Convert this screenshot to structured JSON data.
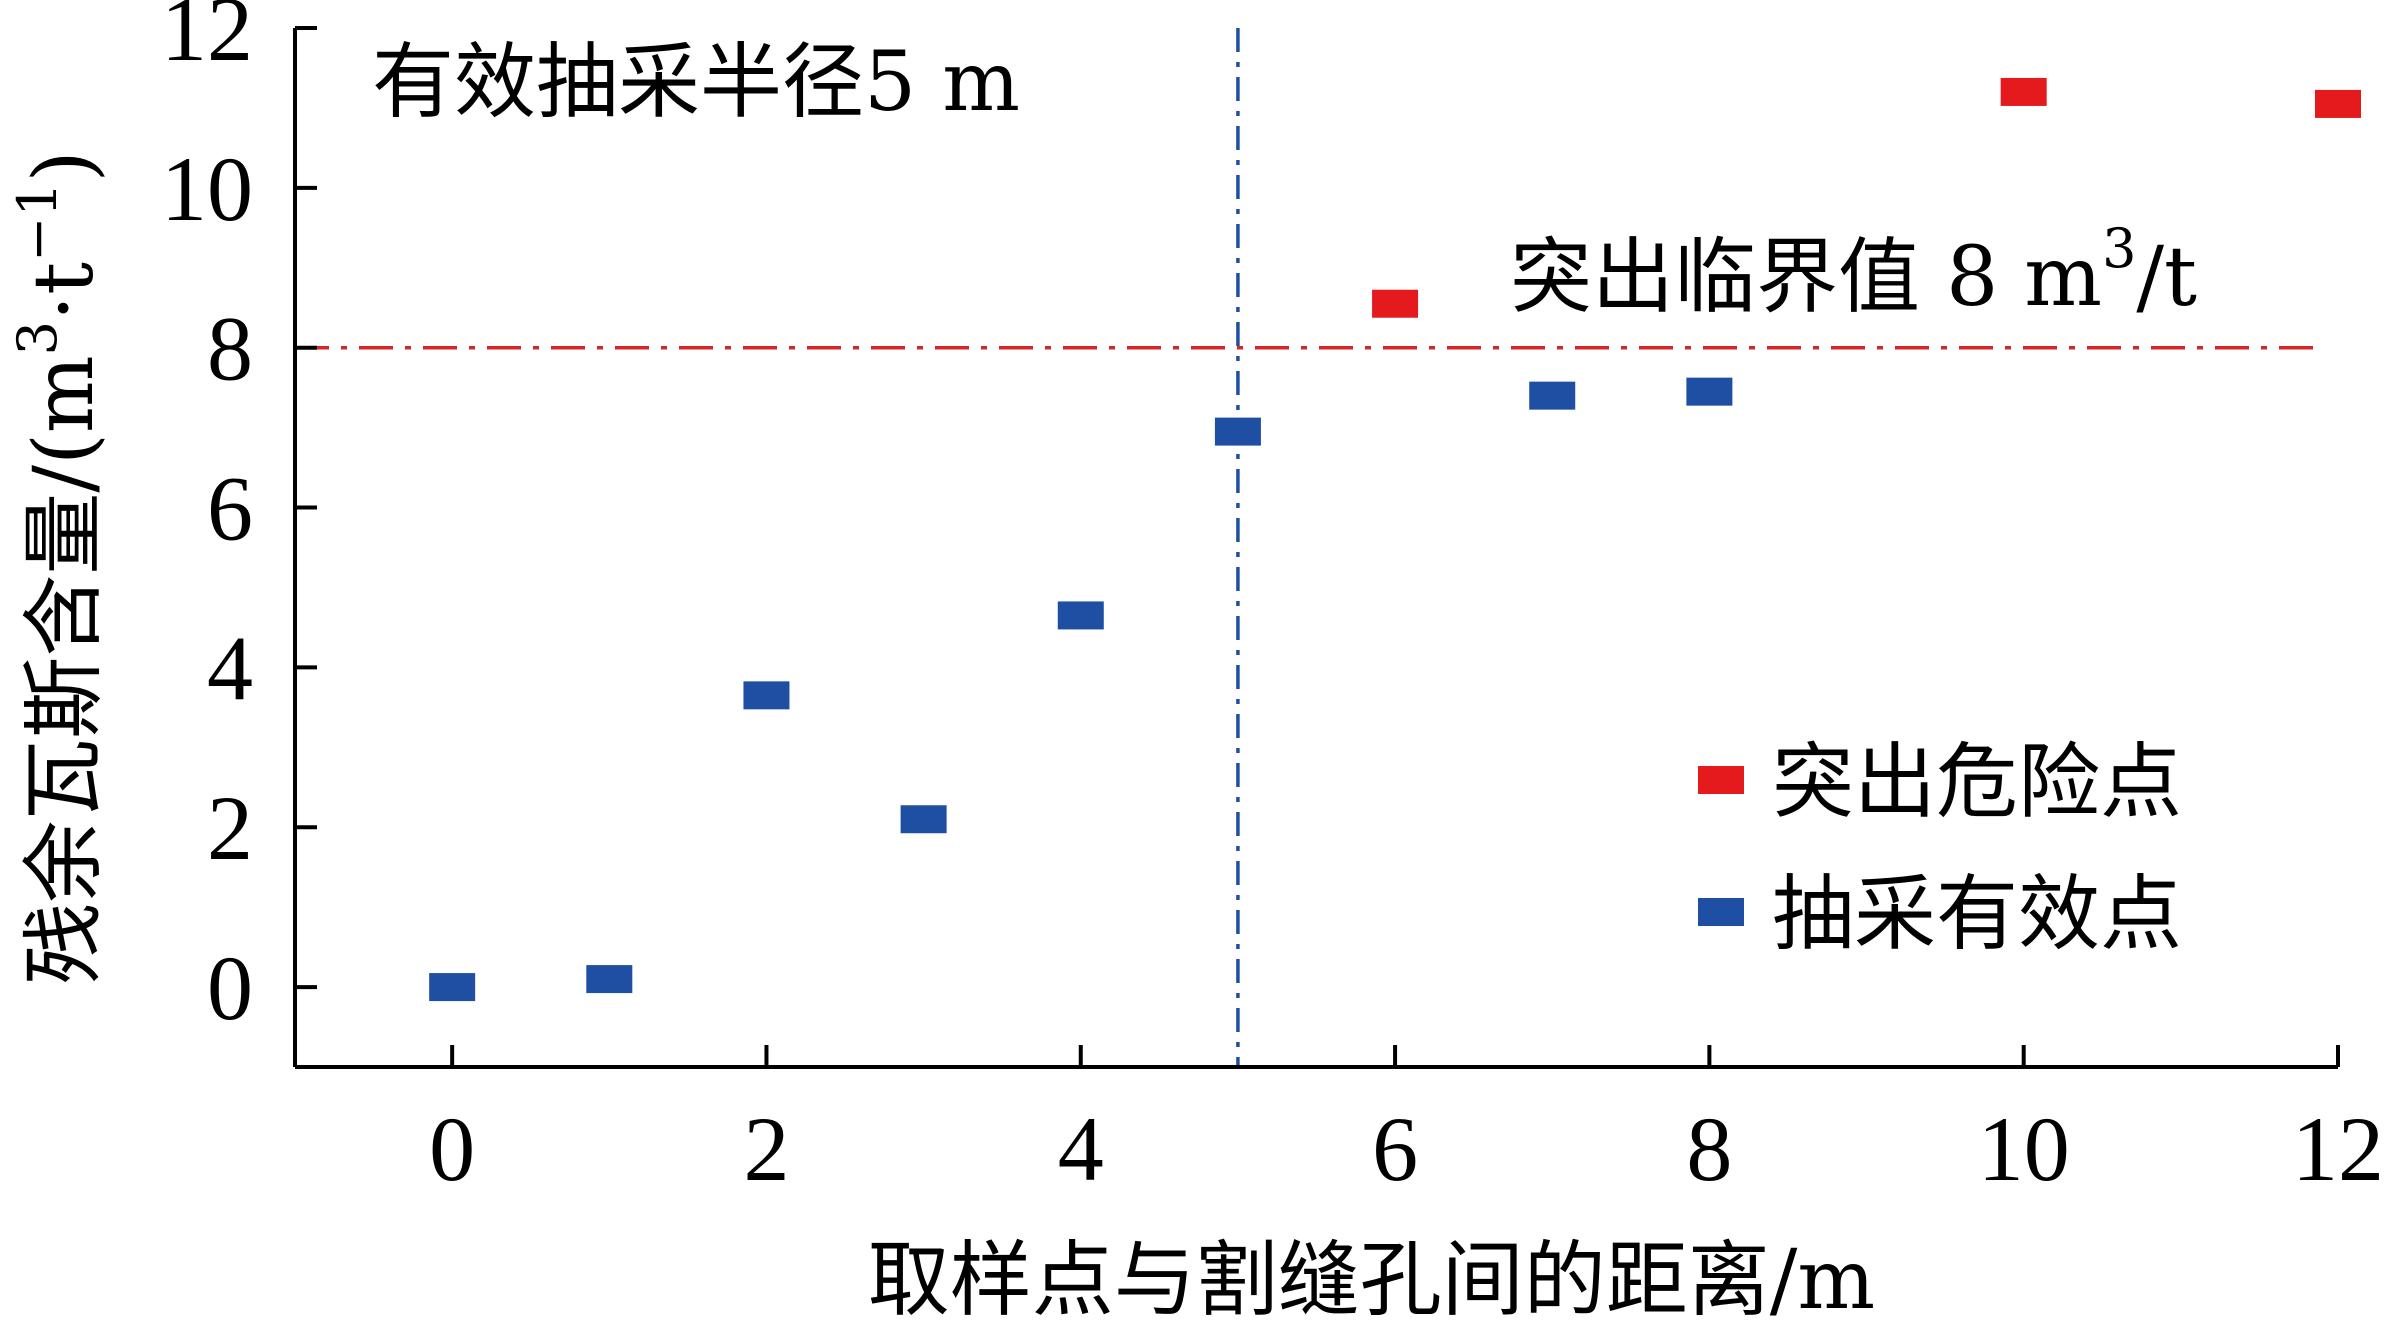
{
  "chart_data": {
    "type": "scatter",
    "xlabel": "取样点与割缝孔间的距离/m",
    "ylabel_main": "残余瓦斯含量/(m",
    "ylabel_sup1": "3",
    "ylabel_mid": "·t",
    "ylabel_sup2": "−1",
    "ylabel_end": ")",
    "xlim": [
      -1,
      12
    ],
    "ylim": [
      -1,
      12
    ],
    "xticks": [
      0,
      2,
      4,
      6,
      8,
      10,
      12
    ],
    "yticks": [
      0,
      2,
      4,
      6,
      8,
      10,
      12
    ],
    "grid": false,
    "legend_position": "bottom-right",
    "series": [
      {
        "name": "突出危险点",
        "color": "#e41a1c",
        "x": [
          6,
          10,
          12
        ],
        "y": [
          8.55,
          11.2,
          11.05
        ]
      },
      {
        "name": "抽采有效点",
        "color": "#1f4fa3",
        "x": [
          0,
          1,
          2,
          3,
          4,
          5,
          7,
          8
        ],
        "y": [
          0.0,
          0.1,
          3.65,
          2.1,
          4.65,
          6.95,
          7.4,
          7.45
        ]
      }
    ],
    "reference_lines": [
      {
        "orientation": "horizontal",
        "value": 8,
        "color": "#d62728",
        "style": "dashdot",
        "label_main": "突出临界值 8 m",
        "label_sup": "3",
        "label_end": "/t"
      },
      {
        "orientation": "vertical",
        "value": 5,
        "color": "#1f4fa3",
        "style": "dashdot",
        "label": "有效抽采半径5 m"
      }
    ]
  }
}
